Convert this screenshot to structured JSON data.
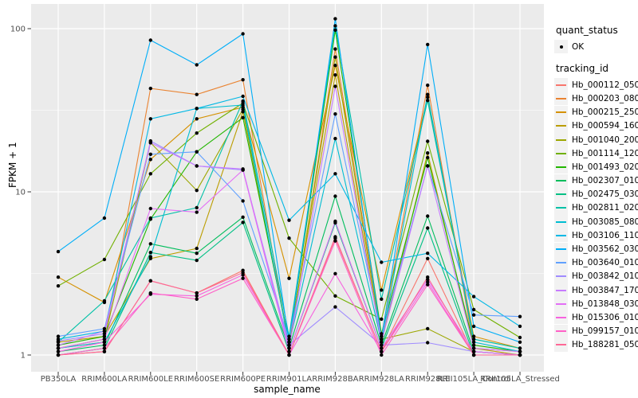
{
  "figure": {
    "bg": "#FFFFFF",
    "panel_bg": "#EBEBEB",
    "grid_color": "#FFFFFF",
    "tick_mark_color": "#333333",
    "tick_label_color": "#4D4D4D",
    "point_color": "#000000"
  },
  "axes": {
    "y_title": "FPKM + 1",
    "x_title": "sample_name",
    "y_tick_labels": [
      "100",
      "10",
      "1"
    ]
  },
  "legend": {
    "quant_title": "quant_status",
    "quant_items": [
      {
        "label": "OK",
        "marker": "black-point"
      }
    ],
    "tracking_title": "tracking_id"
  },
  "chart_data": {
    "type": "line",
    "title": "",
    "xlabel": "sample_name",
    "ylabel": "FPKM + 1",
    "y_scale": "log10",
    "ylim": [
      0.79,
      140
    ],
    "y_major_ticks": [
      1,
      10,
      100
    ],
    "y_minor_gridlines": [
      3.162,
      31.623
    ],
    "grid": "on",
    "legend_position": "right",
    "marker_status_label": "OK",
    "categories": [
      "PB350LA",
      "RRIM600LA",
      "RRIM600LE",
      "RRIM600SE",
      "RRIM600PE",
      "RRIM901LA",
      "RRIM928BA",
      "RRIM928LA",
      "RRIM928LE",
      "RRII105LA_Control",
      "RRII105LA_Stressed"
    ],
    "series": [
      {
        "name": "Hb_000112_050",
        "color": "#F8766D",
        "values": [
          1.0,
          1.05,
          2.85,
          2.4,
          3.3,
          1.0,
          5.2,
          1.05,
          3.9,
          1.0,
          1.0
        ]
      },
      {
        "name": "Hb_000203_080",
        "color": "#EA8331",
        "values": [
          1.1,
          1.2,
          43.0,
          39.5,
          48.6,
          1.1,
          75.0,
          1.3,
          45.0,
          1.1,
          1.05
        ]
      },
      {
        "name": "Hb_000215_250",
        "color": "#D59100",
        "values": [
          3.0,
          2.1,
          15.8,
          28.0,
          33.0,
          2.95,
          59.5,
          2.5,
          38.0,
          1.3,
          1.1
        ]
      },
      {
        "name": "Hb_000594_160",
        "color": "#BB9D00",
        "values": [
          1.2,
          1.3,
          3.9,
          4.5,
          31.0,
          1.2,
          52.0,
          1.2,
          17.3,
          1.1,
          1.0
        ]
      },
      {
        "name": "Hb_001040_200",
        "color": "#9CA700",
        "values": [
          1.1,
          1.25,
          20.0,
          10.2,
          32.0,
          1.15,
          67.0,
          1.25,
          1.45,
          1.05,
          1.0
        ]
      },
      {
        "name": "Hb_001114_120",
        "color": "#71B000",
        "values": [
          2.65,
          3.85,
          12.9,
          22.9,
          35.0,
          5.2,
          2.3,
          1.66,
          20.4,
          1.9,
          1.28
        ]
      },
      {
        "name": "Hb_001493_020",
        "color": "#22B600",
        "values": [
          1.15,
          1.3,
          6.8,
          17.6,
          28.5,
          1.2,
          98.0,
          1.35,
          16.2,
          1.15,
          1.05
        ]
      },
      {
        "name": "Hb_002307_010",
        "color": "#00BD5C",
        "values": [
          1.05,
          1.15,
          4.8,
          4.2,
          7.0,
          1.1,
          9.4,
          1.15,
          7.1,
          1.05,
          1.0
        ]
      },
      {
        "name": "Hb_002475_030",
        "color": "#00C085",
        "values": [
          1.0,
          1.1,
          4.25,
          3.8,
          6.5,
          1.05,
          6.45,
          1.1,
          6.0,
          1.0,
          1.0
        ]
      },
      {
        "name": "Hb_002811_020",
        "color": "#00C1A7",
        "values": [
          1.2,
          2.15,
          6.9,
          8.0,
          36.0,
          1.3,
          104.0,
          2.2,
          36.3,
          1.25,
          1.1
        ]
      },
      {
        "name": "Hb_003085_080",
        "color": "#00BDD2",
        "values": [
          1.1,
          1.2,
          4.0,
          32.4,
          34.0,
          1.15,
          21.2,
          1.2,
          39.5,
          1.2,
          1.05
        ]
      },
      {
        "name": "Hb_003106_110",
        "color": "#00B8E5",
        "values": [
          1.25,
          1.4,
          28.0,
          32.4,
          38.5,
          6.7,
          12.9,
          3.7,
          4.2,
          2.28,
          1.5
        ]
      },
      {
        "name": "Hb_003562_030",
        "color": "#00AEF8",
        "values": [
          4.3,
          6.9,
          85.0,
          60.0,
          93.0,
          1.2,
          115.0,
          1.25,
          80.0,
          1.5,
          1.2
        ]
      },
      {
        "name": "Hb_003640_010",
        "color": "#61A0FF",
        "values": [
          1.3,
          1.45,
          17.0,
          17.6,
          8.8,
          1.25,
          30.0,
          1.3,
          14.4,
          1.76,
          1.72
        ]
      },
      {
        "name": "Hb_003842_010",
        "color": "#A08CFF",
        "values": [
          1.22,
          1.35,
          20.5,
          14.4,
          13.6,
          1.15,
          1.97,
          1.15,
          1.19,
          1.05,
          1.0
        ]
      },
      {
        "name": "Hb_003847_170",
        "color": "#C77CFF",
        "values": [
          1.15,
          1.4,
          20.0,
          14.4,
          13.8,
          1.1,
          44.3,
          1.2,
          14.4,
          1.1,
          1.05
        ]
      },
      {
        "name": "Hb_013848_030",
        "color": "#E36EF6",
        "values": [
          1.1,
          1.25,
          7.9,
          7.5,
          13.6,
          1.05,
          6.6,
          1.1,
          2.9,
          1.05,
          1.0
        ]
      },
      {
        "name": "Hb_015306_010",
        "color": "#F763DF",
        "values": [
          1.05,
          1.2,
          2.36,
          2.3,
          3.1,
          1.0,
          3.15,
          1.05,
          2.8,
          1.0,
          1.0
        ]
      },
      {
        "name": "Hb_099157_010",
        "color": "#FF61C7",
        "values": [
          1.0,
          1.1,
          2.4,
          2.2,
          2.95,
          1.0,
          5.0,
          1.0,
          2.7,
          1.0,
          1.0
        ]
      },
      {
        "name": "Hb_188281_050",
        "color": "#FF6896",
        "values": [
          1.0,
          1.05,
          2.85,
          2.4,
          3.2,
          1.0,
          5.3,
          1.05,
          3.0,
          1.0,
          1.0
        ]
      }
    ]
  }
}
